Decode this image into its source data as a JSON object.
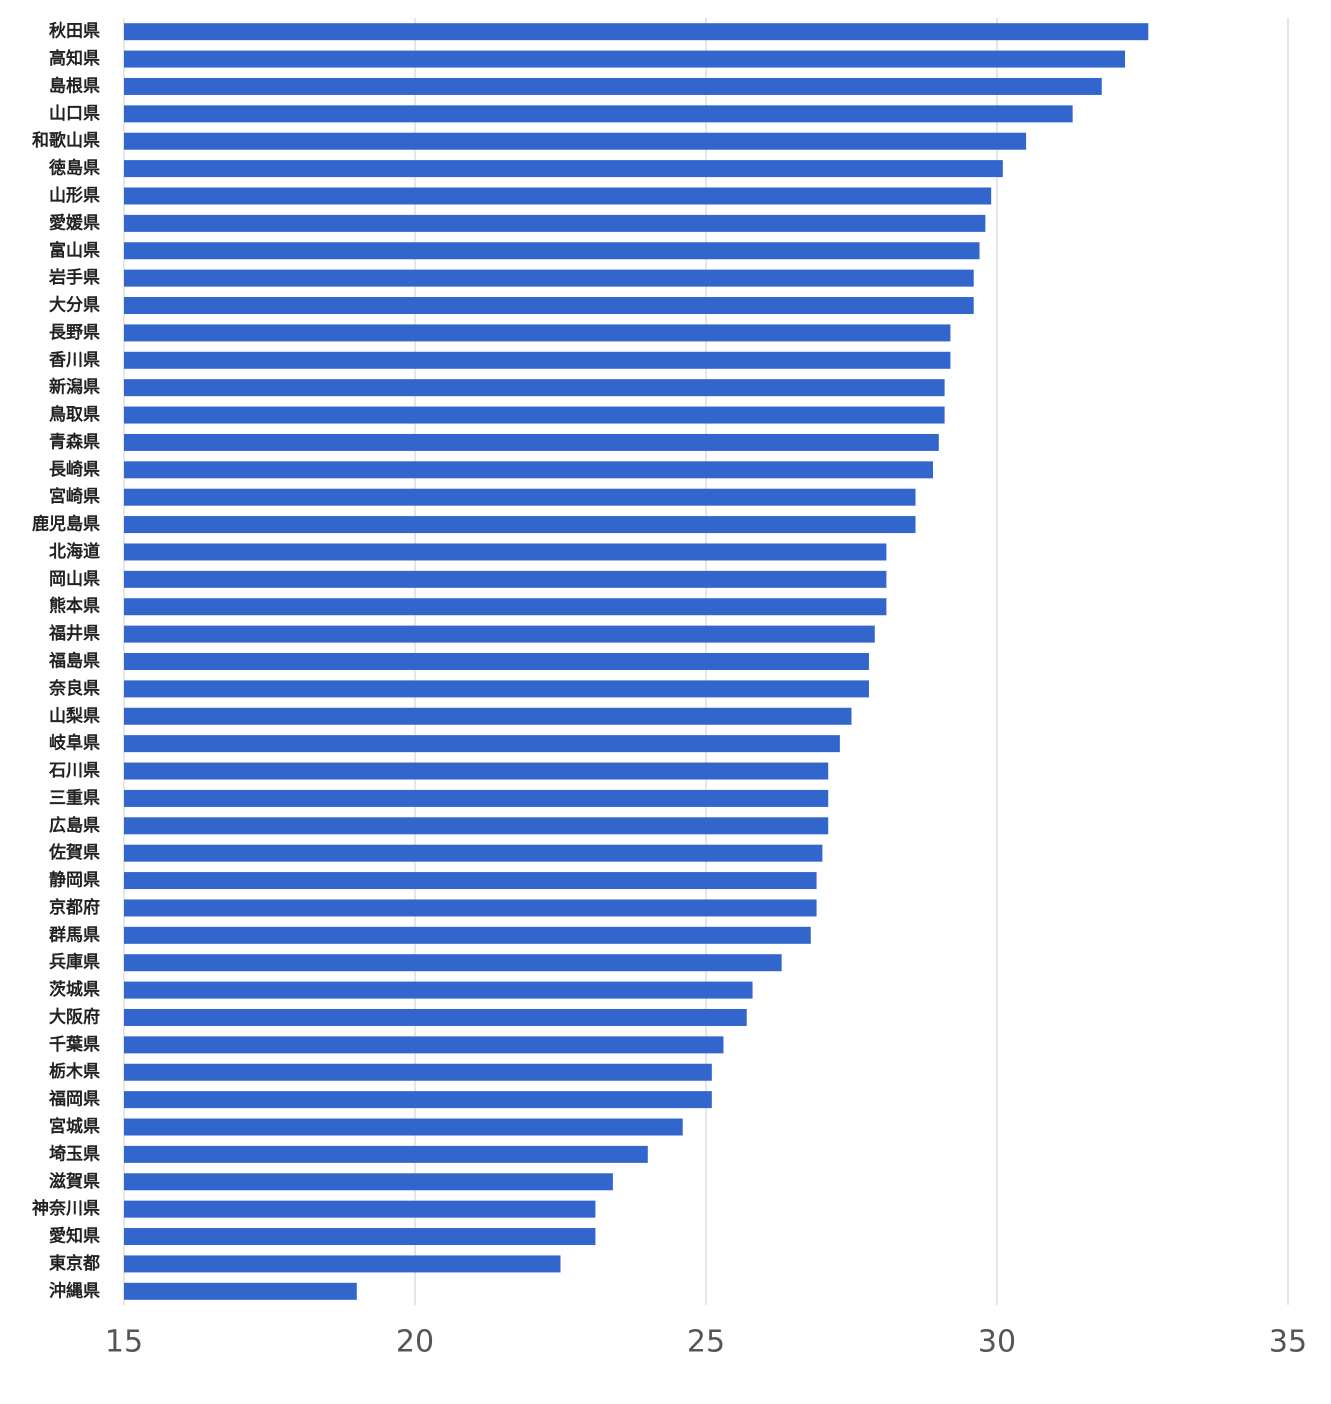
{
  "chart_data": {
    "type": "bar",
    "orientation": "horizontal",
    "color": "#3366cc",
    "grid": true,
    "xlim": [
      15,
      35
    ],
    "xticks": [
      15,
      20,
      25,
      30,
      35
    ],
    "categories": [
      "秋田県",
      "高知県",
      "島根県",
      "山口県",
      "和歌山県",
      "徳島県",
      "山形県",
      "愛媛県",
      "富山県",
      "岩手県",
      "大分県",
      "長野県",
      "香川県",
      "新潟県",
      "鳥取県",
      "青森県",
      "長崎県",
      "宮崎県",
      "鹿児島県",
      "北海道",
      "岡山県",
      "熊本県",
      "福井県",
      "福島県",
      "奈良県",
      "山梨県",
      "岐阜県",
      "石川県",
      "三重県",
      "広島県",
      "佐賀県",
      "静岡県",
      "京都府",
      "群馬県",
      "兵庫県",
      "茨城県",
      "大阪府",
      "千葉県",
      "栃木県",
      "福岡県",
      "宮城県",
      "埼玉県",
      "滋賀県",
      "神奈川県",
      "愛知県",
      "東京都",
      "沖縄県"
    ],
    "values": [
      32.6,
      32.2,
      31.8,
      31.3,
      30.5,
      30.1,
      29.9,
      29.8,
      29.7,
      29.6,
      29.6,
      29.2,
      29.2,
      29.1,
      29.1,
      29.0,
      28.9,
      28.6,
      28.6,
      28.1,
      28.1,
      28.1,
      27.9,
      27.8,
      27.8,
      27.5,
      27.3,
      27.1,
      27.1,
      27.1,
      27.0,
      26.9,
      26.9,
      26.8,
      26.3,
      25.8,
      25.7,
      25.3,
      25.1,
      25.1,
      24.6,
      24.0,
      23.4,
      23.1,
      23.1,
      22.5,
      19.0
    ]
  }
}
